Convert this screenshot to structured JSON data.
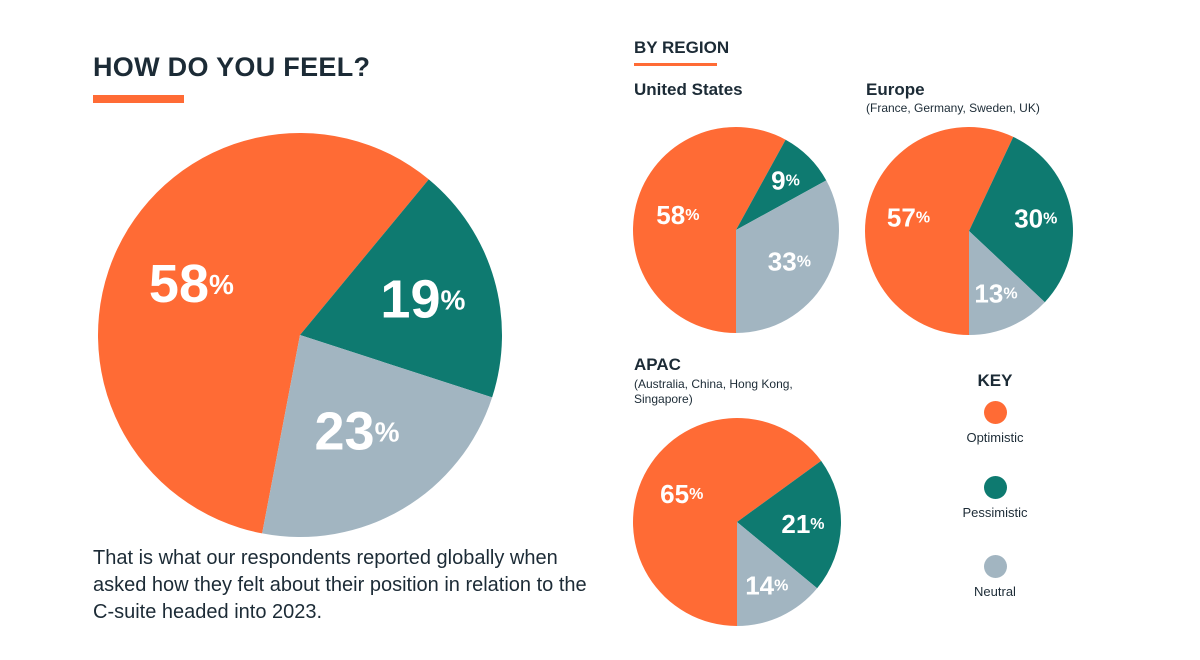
{
  "heading": {
    "title": "HOW DO YOU FEEL?",
    "accent_color": "#ff6b35"
  },
  "caption": "That is what our respondents reported globally when asked how they felt about their position in relation to the C-suite headed into 2023.",
  "section_title": "BY REGION",
  "colors": {
    "optimistic": "#ff6b35",
    "pessimistic": "#0e7a70",
    "neutral": "#a2b5c1",
    "text": "#1c2b36"
  },
  "key": {
    "title": "KEY",
    "items": [
      {
        "label": "Optimistic",
        "color_key": "optimistic"
      },
      {
        "label": "Pessimistic",
        "color_key": "pessimistic"
      },
      {
        "label": "Neutral",
        "color_key": "neutral"
      }
    ]
  },
  "chart_data": [
    {
      "type": "pie",
      "id": "global",
      "title": "",
      "categories": [
        "Optimistic",
        "Pessimistic",
        "Neutral"
      ],
      "values": [
        58,
        19,
        23
      ],
      "labels": [
        "58",
        "19",
        "23"
      ],
      "unit": "%"
    },
    {
      "type": "pie",
      "id": "us",
      "title": "United States",
      "categories": [
        "Optimistic",
        "Pessimistic",
        "Neutral"
      ],
      "values": [
        58,
        9,
        33
      ],
      "labels": [
        "58",
        "9",
        "33"
      ],
      "unit": "%"
    },
    {
      "type": "pie",
      "id": "europe",
      "title": "Europe",
      "subtitle": "(France, Germany, Sweden, UK)",
      "categories": [
        "Optimistic",
        "Pessimistic",
        "Neutral"
      ],
      "values": [
        57,
        30,
        13
      ],
      "labels": [
        "57",
        "30",
        "13"
      ],
      "unit": "%"
    },
    {
      "type": "pie",
      "id": "apac",
      "title": "APAC",
      "subtitle": "(Australia, China, Hong Kong, Singapore)",
      "categories": [
        "Optimistic",
        "Pessimistic",
        "Neutral"
      ],
      "values": [
        65,
        21,
        14
      ],
      "labels": [
        "65",
        "21",
        "14"
      ],
      "unit": "%"
    }
  ]
}
